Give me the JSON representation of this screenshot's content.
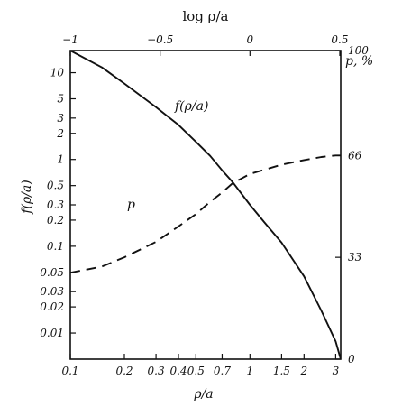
{
  "chart_data": {
    "type": "line",
    "title": "",
    "top_axis": {
      "label": "log ρ/a",
      "ticks": [
        {
          "value": -1,
          "label": "−1"
        },
        {
          "value": -0.5,
          "label": "−0.5"
        },
        {
          "value": 0,
          "label": "0"
        },
        {
          "value": 0.5,
          "label": "0.5"
        }
      ]
    },
    "xlabel": "ρ/a",
    "x_scale": "log",
    "xlim": [
      0.1,
      3.2
    ],
    "x_ticks": [
      {
        "value": 0.1,
        "label": "0.1"
      },
      {
        "value": 0.2,
        "label": "0.2"
      },
      {
        "value": 0.3,
        "label": "0.3"
      },
      {
        "value": 0.4,
        "label": "0.4"
      },
      {
        "value": 0.5,
        "label": "0.5"
      },
      {
        "value": 0.7,
        "label": "0.7"
      },
      {
        "value": 1,
        "label": "1"
      },
      {
        "value": 1.5,
        "label": "1.5"
      },
      {
        "value": 2,
        "label": "2"
      },
      {
        "value": 3,
        "label": "3"
      }
    ],
    "ylabel_left": "f(ρ/a)",
    "y_scale_left": "log",
    "ylim_left": [
      0.005,
      18
    ],
    "y_ticks_left": [
      {
        "value": 10,
        "label": "10"
      },
      {
        "value": 5,
        "label": "5"
      },
      {
        "value": 3,
        "label": "3"
      },
      {
        "value": 2,
        "label": "2"
      },
      {
        "value": 1,
        "label": "1"
      },
      {
        "value": 0.5,
        "label": "0.5"
      },
      {
        "value": 0.3,
        "label": "0.3"
      },
      {
        "value": 0.2,
        "label": "0.2"
      },
      {
        "value": 0.1,
        "label": "0.1"
      },
      {
        "value": 0.05,
        "label": "0.05"
      },
      {
        "value": 0.03,
        "label": "0.03"
      },
      {
        "value": 0.02,
        "label": "0.02"
      },
      {
        "value": 0.01,
        "label": "0.01"
      }
    ],
    "ylabel_right": "p, %",
    "ylim_right": [
      0,
      100
    ],
    "y_ticks_right": [
      {
        "value": 100,
        "label": "100"
      },
      {
        "value": 66,
        "label": "66"
      },
      {
        "value": 33,
        "label": "33"
      },
      {
        "value": 0,
        "label": "0"
      }
    ],
    "grid": false,
    "series": [
      {
        "name": "f(ρ/a)",
        "axis": "left",
        "style": "solid",
        "x": [
          0.1,
          0.15,
          0.2,
          0.3,
          0.4,
          0.5,
          0.6,
          0.7,
          0.8,
          1.0,
          1.2,
          1.5,
          2.0,
          2.5,
          3.0,
          3.2
        ],
        "y": [
          18,
          11.5,
          7.5,
          4.0,
          2.5,
          1.6,
          1.1,
          0.75,
          0.55,
          0.3,
          0.19,
          0.11,
          0.045,
          0.018,
          0.008,
          0.005
        ]
      },
      {
        "name": "p",
        "axis": "right",
        "style": "dashed",
        "x": [
          0.1,
          0.15,
          0.2,
          0.3,
          0.4,
          0.5,
          0.6,
          0.7,
          0.8,
          1.0,
          1.5,
          2.0,
          2.5,
          3.0,
          3.2
        ],
        "y": [
          28,
          30,
          33,
          38,
          43,
          47,
          51,
          54,
          57,
          60,
          63,
          64.5,
          65.5,
          66,
          66
        ]
      }
    ]
  }
}
